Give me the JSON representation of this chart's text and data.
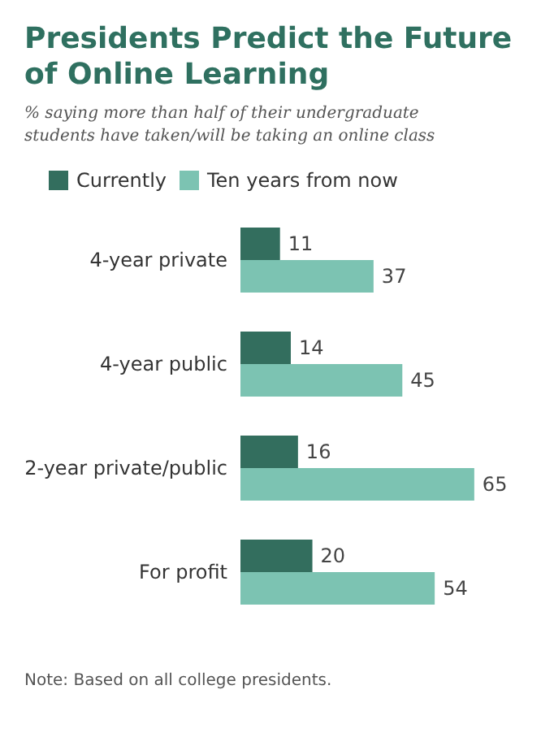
{
  "chart_data": {
    "type": "bar",
    "orientation": "horizontal",
    "title": "Presidents Predict the Future of Online Learning",
    "subtitle": "% saying more than half of their undergraduate students have taken/will be taking an online class",
    "categories": [
      "4-year private",
      "4-year public",
      "2-year private/public",
      "For profit"
    ],
    "series": [
      {
        "name": "Currently",
        "color": "#336e5e",
        "values": [
          11,
          14,
          16,
          20
        ]
      },
      {
        "name": "Ten years from now",
        "color": "#7cc3b2",
        "values": [
          37,
          45,
          65,
          54
        ]
      }
    ],
    "data_labels": true,
    "legend": "top left",
    "annotations": [
      "Note: Based on all college presidents."
    ]
  }
}
